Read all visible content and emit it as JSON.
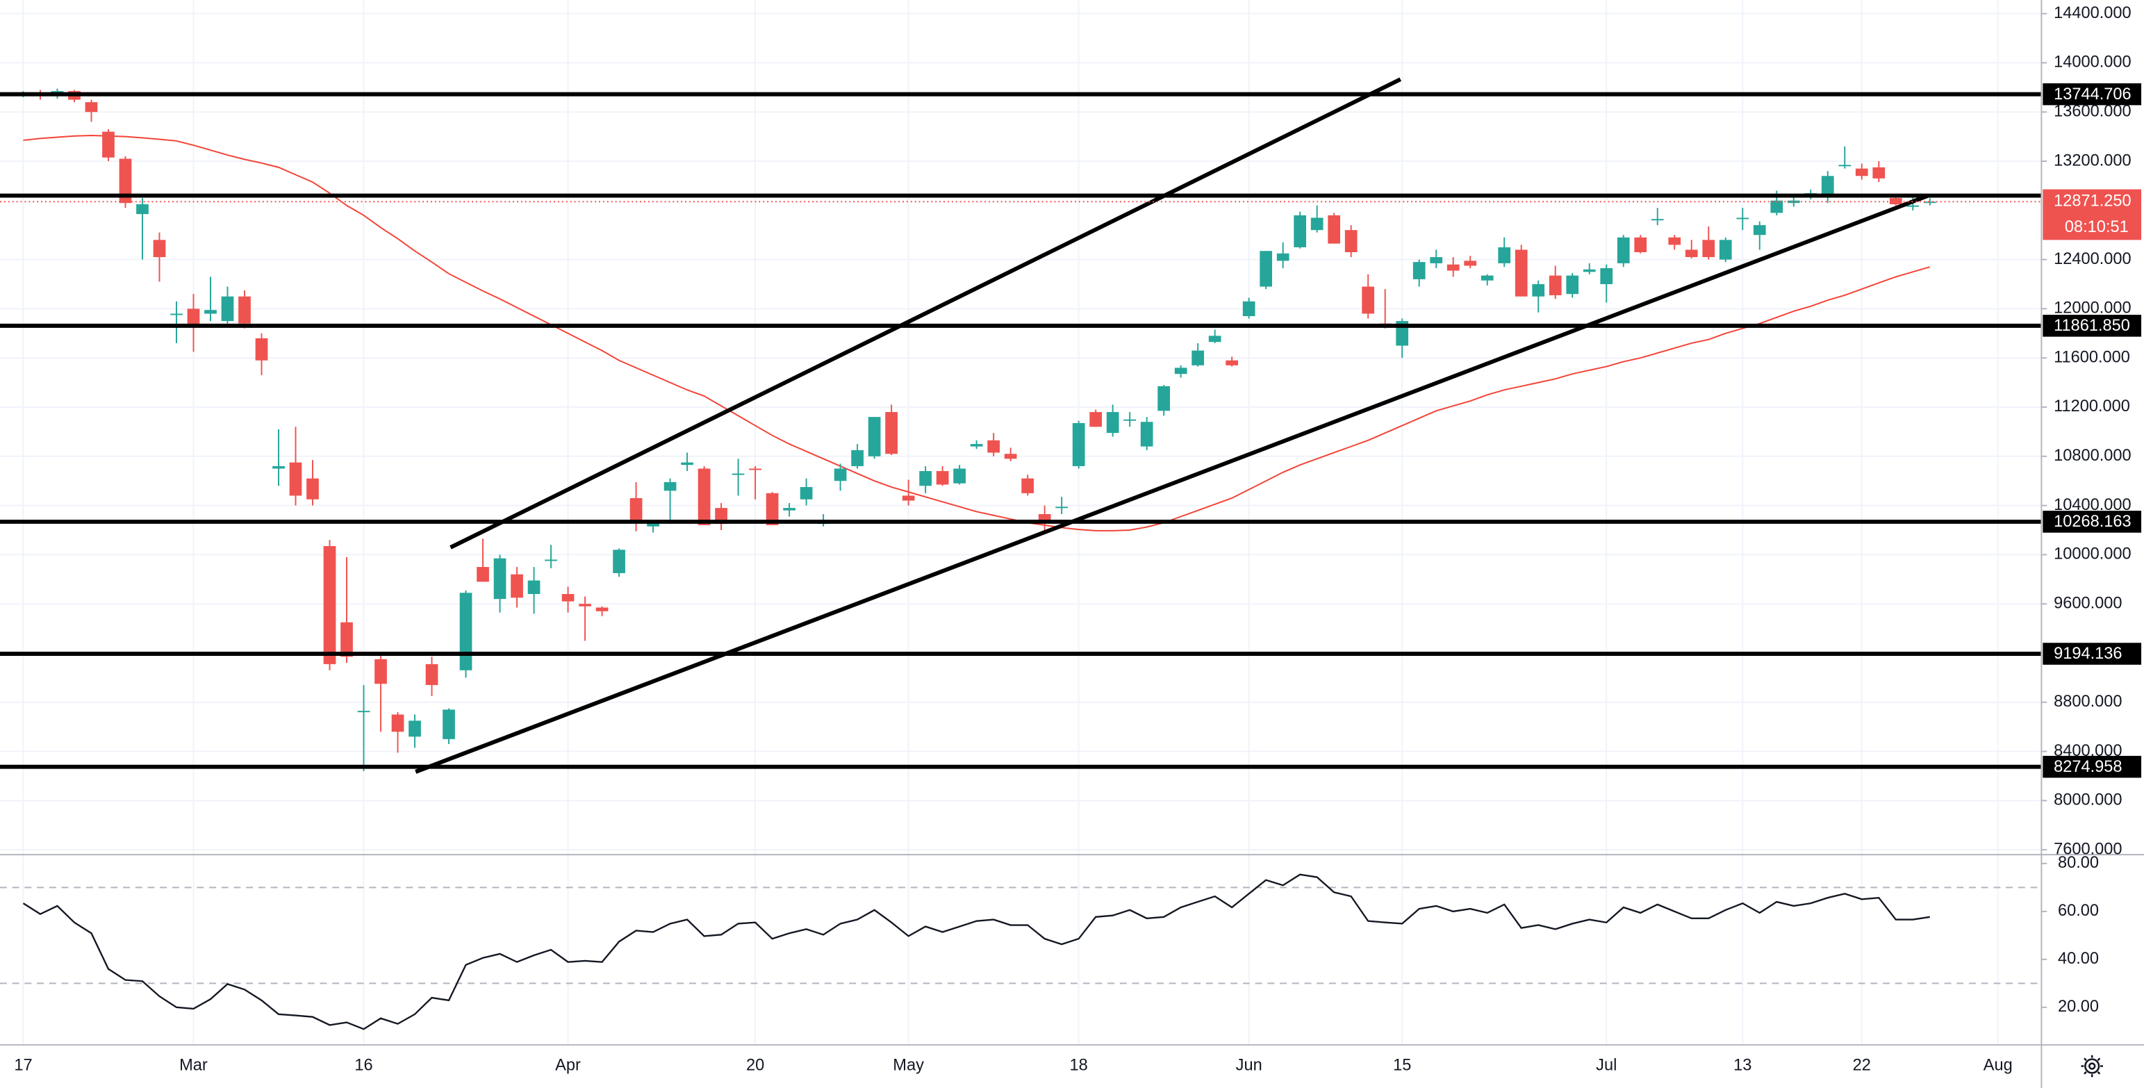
{
  "chart_data": [
    {
      "type": "candlestick",
      "categories": [
        "17",
        null,
        null,
        null,
        null,
        null,
        null,
        null,
        null,
        null,
        "Mar",
        null,
        null,
        null,
        null,
        null,
        null,
        null,
        null,
        null,
        "16",
        null,
        null,
        null,
        null,
        null,
        null,
        null,
        null,
        null,
        null,
        null,
        "Apr",
        null,
        null,
        null,
        null,
        null,
        null,
        null,
        null,
        null,
        null,
        "20",
        null,
        null,
        null,
        null,
        null,
        null,
        null,
        null,
        "May",
        null,
        null,
        null,
        null,
        null,
        null,
        null,
        null,
        null,
        "18",
        null,
        null,
        null,
        null,
        null,
        null,
        null,
        null,
        null,
        "Jun",
        null,
        null,
        null,
        null,
        null,
        null,
        null,
        null,
        "15",
        null,
        null,
        null,
        null,
        null,
        null,
        null,
        null,
        null,
        null,
        null,
        "Jul",
        null,
        null,
        null,
        null,
        null,
        null,
        null,
        "13",
        null,
        null,
        null,
        null,
        null,
        null,
        "22",
        null,
        null,
        null,
        null,
        null,
        null,
        null,
        "Aug"
      ],
      "ohlc": [
        [
          13740,
          13770,
          13720,
          13755
        ],
        [
          13755,
          13780,
          13700,
          13730
        ],
        [
          13730,
          13790,
          13710,
          13770
        ],
        [
          13770,
          13780,
          13680,
          13700
        ],
        [
          13680,
          13700,
          13520,
          13600
        ],
        [
          13440,
          13460,
          13200,
          13230
        ],
        [
          13220,
          13240,
          12820,
          12860
        ],
        [
          12770,
          12900,
          12400,
          12850
        ],
        [
          12560,
          12620,
          12220,
          12420
        ],
        [
          11950,
          12060,
          11720,
          11960
        ],
        [
          12000,
          12120,
          11650,
          11850
        ],
        [
          11960,
          12260,
          11900,
          11990
        ],
        [
          11900,
          12180,
          11880,
          12100
        ],
        [
          12100,
          12150,
          11840,
          11880
        ],
        [
          11760,
          11800,
          11460,
          11580
        ],
        [
          10700,
          11020,
          10560,
          10720
        ],
        [
          10750,
          11040,
          10400,
          10480
        ],
        [
          10620,
          10770,
          10400,
          10450
        ],
        [
          10070,
          10120,
          9060,
          9110
        ],
        [
          9450,
          9980,
          9120,
          9170
        ],
        [
          8720,
          8940,
          8240,
          8730
        ],
        [
          9150,
          9180,
          8560,
          8950
        ],
        [
          8700,
          8720,
          8390,
          8560
        ],
        [
          8520,
          8700,
          8430,
          8650
        ],
        [
          9110,
          9170,
          8850,
          8940
        ],
        [
          8500,
          8750,
          8460,
          8740
        ],
        [
          9060,
          9710,
          9000,
          9690
        ],
        [
          9900,
          10130,
          9780,
          9780
        ],
        [
          9640,
          10000,
          9530,
          9970
        ],
        [
          9840,
          9900,
          9570,
          9650
        ],
        [
          9680,
          9900,
          9520,
          9790
        ],
        [
          9950,
          10080,
          9890,
          9960
        ],
        [
          9680,
          9740,
          9530,
          9620
        ],
        [
          9600,
          9660,
          9300,
          9580
        ],
        [
          9570,
          9580,
          9500,
          9540
        ],
        [
          9850,
          10050,
          9820,
          10040
        ],
        [
          10460,
          10590,
          10190,
          10280
        ],
        [
          10230,
          10280,
          10180,
          10260
        ],
        [
          10520,
          10620,
          10250,
          10590
        ],
        [
          10730,
          10830,
          10680,
          10750
        ],
        [
          10700,
          10720,
          10240,
          10240
        ],
        [
          10380,
          10420,
          10200,
          10250
        ],
        [
          10650,
          10780,
          10480,
          10660
        ],
        [
          10700,
          10720,
          10450,
          10690
        ],
        [
          10500,
          10510,
          10240,
          10240
        ],
        [
          10360,
          10420,
          10310,
          10380
        ],
        [
          10450,
          10620,
          10400,
          10550
        ],
        [
          10250,
          10330,
          10230,
          10270
        ],
        [
          10600,
          10740,
          10520,
          10700
        ],
        [
          10720,
          10900,
          10700,
          10850
        ],
        [
          10800,
          11120,
          10780,
          11120
        ],
        [
          11160,
          11220,
          10810,
          10820
        ],
        [
          10480,
          10610,
          10400,
          10440
        ],
        [
          10560,
          10720,
          10500,
          10680
        ],
        [
          10680,
          10720,
          10560,
          10570
        ],
        [
          10580,
          10730,
          10570,
          10700
        ],
        [
          10880,
          10930,
          10860,
          10900
        ],
        [
          10930,
          10990,
          10800,
          10830
        ],
        [
          10820,
          10870,
          10760,
          10780
        ],
        [
          10620,
          10650,
          10480,
          10500
        ],
        [
          10330,
          10400,
          10170,
          10270
        ],
        [
          10380,
          10470,
          10330,
          10390
        ],
        [
          10720,
          11090,
          10700,
          11070
        ],
        [
          11160,
          11180,
          11040,
          11040
        ],
        [
          10990,
          11220,
          10960,
          11160
        ],
        [
          11090,
          11160,
          11040,
          11100
        ],
        [
          10880,
          11120,
          10850,
          11080
        ],
        [
          11170,
          11380,
          11130,
          11370
        ],
        [
          11470,
          11540,
          11440,
          11520
        ],
        [
          11540,
          11720,
          11530,
          11660
        ],
        [
          11730,
          11830,
          11720,
          11780
        ],
        [
          11580,
          11610,
          11530,
          11540
        ],
        [
          11940,
          12090,
          11920,
          12060
        ],
        [
          12180,
          12470,
          12160,
          12470
        ],
        [
          12390,
          12540,
          12330,
          12450
        ],
        [
          12500,
          12790,
          12490,
          12760
        ],
        [
          12640,
          12840,
          12620,
          12740
        ],
        [
          12760,
          12780,
          12530,
          12530
        ],
        [
          12640,
          12680,
          12420,
          12460
        ],
        [
          12180,
          12280,
          11920,
          11960
        ],
        [
          11880,
          12160,
          11840,
          11870
        ],
        [
          11700,
          11920,
          11600,
          11900
        ],
        [
          12240,
          12400,
          12180,
          12380
        ],
        [
          12370,
          12480,
          12330,
          12420
        ],
        [
          12360,
          12420,
          12260,
          12310
        ],
        [
          12390,
          12430,
          12330,
          12350
        ],
        [
          12230,
          12280,
          12190,
          12270
        ],
        [
          12370,
          12580,
          12340,
          12500
        ],
        [
          12480,
          12520,
          12100,
          12100
        ],
        [
          12100,
          12230,
          11970,
          12200
        ],
        [
          12270,
          12350,
          12080,
          12110
        ],
        [
          12120,
          12290,
          12090,
          12270
        ],
        [
          12300,
          12370,
          12280,
          12320
        ],
        [
          12200,
          12360,
          12050,
          12330
        ],
        [
          12370,
          12600,
          12340,
          12580
        ],
        [
          12580,
          12600,
          12450,
          12460
        ],
        [
          12720,
          12820,
          12680,
          12730
        ],
        [
          12580,
          12600,
          12480,
          12520
        ],
        [
          12480,
          12560,
          12410,
          12420
        ],
        [
          12560,
          12670,
          12400,
          12420
        ],
        [
          12400,
          12580,
          12380,
          12560
        ],
        [
          12730,
          12820,
          12640,
          12740
        ],
        [
          12600,
          12710,
          12480,
          12680
        ],
        [
          12780,
          12960,
          12760,
          12880
        ],
        [
          12860,
          12930,
          12830,
          12880
        ],
        [
          12920,
          12970,
          12890,
          12940
        ],
        [
          12910,
          13120,
          12860,
          13080
        ],
        [
          13160,
          13320,
          13140,
          13170
        ],
        [
          13140,
          13180,
          13050,
          13080
        ],
        [
          13150,
          13200,
          13030,
          13060
        ],
        [
          12900,
          12920,
          12840,
          12850
        ],
        [
          12830,
          12910,
          12800,
          12840
        ],
        [
          12860,
          12900,
          12840,
          12871.25
        ],
        null,
        null,
        null,
        null
      ],
      "up_color": "#26a69a",
      "down_color": "#ef5350",
      "ma": {
        "color": "#f44336",
        "values": [
          13370,
          13385,
          13395,
          13405,
          13409,
          13405,
          13400,
          13390,
          13378,
          13365,
          13330,
          13290,
          13250,
          13215,
          13185,
          13150,
          13090,
          13030,
          12940,
          12840,
          12760,
          12660,
          12570,
          12470,
          12380,
          12285,
          12215,
          12145,
          12080,
          12010,
          11940,
          11870,
          11800,
          11730,
          11660,
          11580,
          11520,
          11460,
          11400,
          11340,
          11290,
          11210,
          11130,
          11050,
          10970,
          10900,
          10840,
          10780,
          10720,
          10660,
          10600,
          10550,
          10510,
          10470,
          10430,
          10390,
          10350,
          10320,
          10290,
          10260,
          10240,
          10220,
          10205,
          10195,
          10195,
          10200,
          10225,
          10260,
          10310,
          10360,
          10410,
          10460,
          10530,
          10600,
          10670,
          10730,
          10780,
          10830,
          10880,
          10930,
          10990,
          11050,
          11110,
          11170,
          11210,
          11250,
          11300,
          11340,
          11370,
          11400,
          11430,
          11470,
          11500,
          11530,
          11570,
          11600,
          11640,
          11680,
          11720,
          11750,
          11800,
          11840,
          11880,
          11930,
          11980,
          12020,
          12070,
          12110,
          12160,
          12210,
          12260,
          12300,
          12340,
          null,
          null,
          null,
          null
        ]
      },
      "ylim": [
        7566,
        14511
      ],
      "yticks": [
        {
          "value": 14400,
          "label": "14400.000"
        },
        {
          "value": 14000,
          "label": "14000.000"
        },
        {
          "value": 13600,
          "label": "13600.000"
        },
        {
          "value": 13200,
          "label": "13200.000"
        },
        {
          "value": 12400,
          "label": "12400.000"
        },
        {
          "value": 12000,
          "label": "12000.000"
        },
        {
          "value": 11600,
          "label": "11600.000"
        },
        {
          "value": 11200,
          "label": "11200.000"
        },
        {
          "value": 10800,
          "label": "10800.000"
        },
        {
          "value": 10400,
          "label": "10400.000"
        },
        {
          "value": 10000,
          "label": "10000.000"
        },
        {
          "value": 9600,
          "label": "9600.000"
        },
        {
          "value": 8800,
          "label": "8800.000"
        },
        {
          "value": 8400,
          "label": "8400.000"
        },
        {
          "value": 8000,
          "label": "8000.000"
        },
        {
          "value": 7600,
          "label": "7600.000"
        }
      ],
      "grid": true,
      "levels": [
        13744.706,
        {
          "value": 11861.85,
          "label": "11861.850"
        },
        10268.163,
        9194.136,
        8274.958
      ],
      "extra_levels": [
        12920
      ],
      "trendlines": [
        {
          "x": [
            25.1,
            80.9
          ],
          "y": [
            10059,
            13866
          ]
        },
        {
          "x": [
            23.05,
            111.9
          ],
          "y": [
            8234,
            12920
          ]
        }
      ],
      "last_price": {
        "value": 12871.25,
        "label": "12871.250"
      },
      "countdown": "08:10:51"
    },
    {
      "type": "line",
      "color": "#131722",
      "values": [
        63.4,
        58.9,
        62.3,
        55.4,
        50.9,
        36.0,
        31.4,
        30.9,
        24.6,
        20.0,
        19.4,
        23.4,
        29.7,
        27.4,
        22.9,
        17.1,
        16.6,
        16.0,
        12.6,
        13.7,
        10.9,
        15.4,
        13.1,
        17.1,
        24.0,
        22.9,
        37.7,
        40.6,
        42.3,
        38.9,
        41.7,
        44.0,
        38.9,
        39.4,
        38.9,
        47.4,
        52.0,
        51.4,
        54.9,
        56.6,
        49.7,
        50.3,
        54.9,
        55.4,
        48.6,
        50.9,
        52.6,
        50.3,
        54.9,
        56.6,
        60.6,
        55.4,
        49.7,
        53.7,
        51.4,
        53.7,
        56.0,
        56.6,
        54.3,
        54.3,
        48.6,
        46.3,
        48.6,
        57.7,
        58.3,
        60.6,
        57.1,
        57.7,
        61.7,
        64.0,
        66.3,
        61.7,
        67.4,
        73.1,
        70.9,
        75.4,
        74.3,
        68.0,
        66.3,
        56.0,
        55.4,
        54.9,
        61.1,
        62.3,
        60.0,
        61.1,
        59.4,
        62.9,
        53.1,
        54.3,
        52.6,
        54.9,
        56.6,
        55.4,
        61.7,
        59.4,
        62.9,
        60.0,
        57.1,
        57.1,
        60.6,
        63.4,
        59.4,
        64.0,
        62.3,
        63.4,
        65.7,
        67.4,
        65.1,
        65.7,
        56.6,
        56.6,
        57.7,
        null,
        null,
        null,
        null
      ],
      "ylim": [
        4.6,
        83.4
      ],
      "yticks": [
        {
          "value": 80,
          "label": "80.00"
        },
        {
          "value": 60,
          "label": "60.00"
        },
        {
          "value": 40,
          "label": "40.00"
        },
        {
          "value": 20,
          "label": "20.00"
        }
      ],
      "bands": [
        30,
        70
      ]
    }
  ]
}
